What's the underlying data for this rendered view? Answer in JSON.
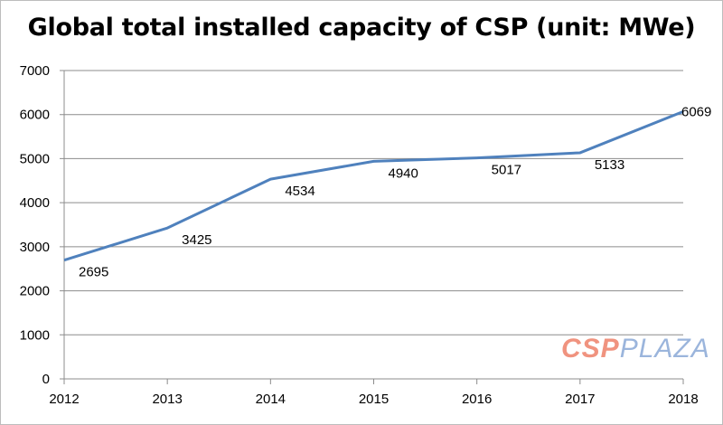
{
  "chart_data": {
    "type": "line",
    "title": "Global total installed capacity of CSP (unit: MWe)",
    "categories": [
      "2012",
      "2013",
      "2014",
      "2015",
      "2016",
      "2017",
      "2018"
    ],
    "values": [
      2695,
      3425,
      4534,
      4940,
      5017,
      5133,
      6069
    ],
    "data_labels": [
      "2695",
      "3425",
      "4534",
      "4940",
      "5017",
      "5133",
      "6069"
    ],
    "ylim": [
      0,
      7000
    ],
    "yticks": [
      0,
      1000,
      2000,
      3000,
      4000,
      5000,
      6000,
      7000
    ],
    "grid": "horizontal",
    "line_color": "#4f81bd",
    "legend": "none"
  },
  "watermark": {
    "part1": "CSP",
    "part2": "PLAZA"
  }
}
